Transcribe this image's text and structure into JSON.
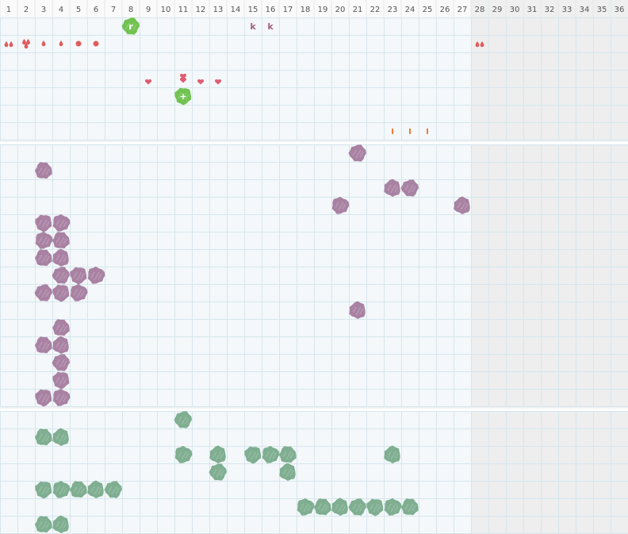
{
  "columns": [
    "1",
    "2",
    "3",
    "4",
    "5",
    "6",
    "7",
    "8",
    "9",
    "10",
    "11",
    "12",
    "13",
    "14",
    "15",
    "16",
    "17",
    "18",
    "19",
    "20",
    "21",
    "22",
    "23",
    "24",
    "25",
    "26",
    "27",
    "28",
    "29",
    "30",
    "31",
    "32",
    "33",
    "34",
    "35",
    "36"
  ],
  "cell_labels": [
    "r",
    "k",
    "k",
    "+"
  ]
}
